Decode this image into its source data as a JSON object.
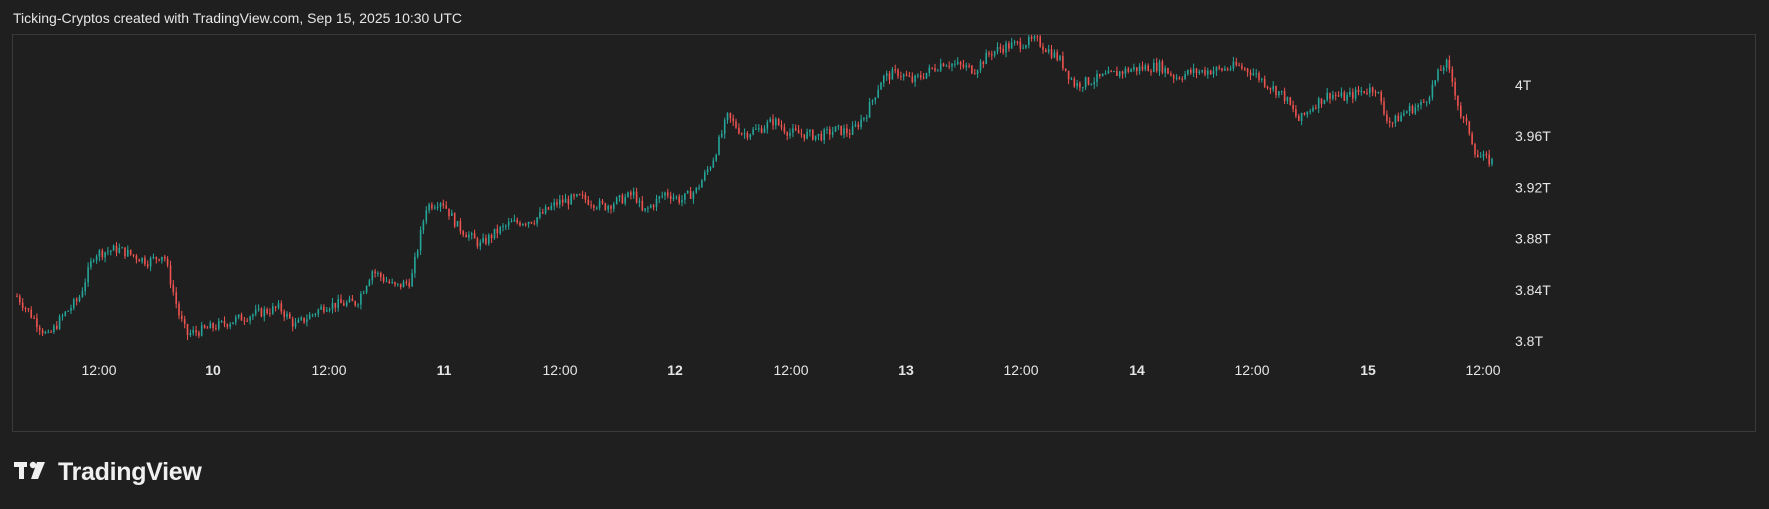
{
  "header": {
    "text": "Ticking-Cryptos created with TradingView.com, Sep 15, 2025 10:30 UTC"
  },
  "footer": {
    "brand": "TradingView",
    "logo_icon": "tradingview-logo-icon"
  },
  "colors": {
    "background": "#1f1f1f",
    "up": "#26a69a",
    "down": "#ef5350",
    "border": "#3a3a3a",
    "text": "#e6e6e6"
  },
  "chart_data": {
    "type": "candlestick",
    "title": "",
    "xlabel": "",
    "ylabel": "",
    "x_tick_labels": [
      "12:00",
      "10",
      "12:00",
      "11",
      "12:00",
      "12",
      "12:00",
      "13",
      "12:00",
      "14",
      "12:00",
      "15",
      "12:00"
    ],
    "x_tick_bold": [
      false,
      true,
      false,
      true,
      false,
      true,
      false,
      true,
      false,
      true,
      false,
      true,
      false
    ],
    "x_range": [
      "Sep 9 06:00",
      "Sep 15 13:00"
    ],
    "y_tick_labels": [
      "4T",
      "3.96T",
      "3.92T",
      "3.88T",
      "3.84T",
      "3.8T"
    ],
    "y_tick_values": [
      4.0,
      3.96,
      3.92,
      3.88,
      3.84,
      3.8
    ],
    "y_unit": "T",
    "ylim": [
      3.785,
      4.045
    ],
    "grid": false,
    "price_path": [
      [
        0.0,
        3.835
      ],
      [
        0.02,
        3.803
      ],
      [
        0.03,
        3.82
      ],
      [
        0.04,
        3.833
      ],
      [
        0.05,
        3.868
      ],
      [
        0.065,
        3.872
      ],
      [
        0.085,
        3.862
      ],
      [
        0.095,
        3.868
      ],
      [
        0.105,
        3.82
      ],
      [
        0.11,
        3.805
      ],
      [
        0.13,
        3.812
      ],
      [
        0.15,
        3.82
      ],
      [
        0.17,
        3.826
      ],
      [
        0.18,
        3.812
      ],
      [
        0.2,
        3.828
      ],
      [
        0.22,
        3.83
      ],
      [
        0.23,
        3.855
      ],
      [
        0.245,
        3.842
      ],
      [
        0.255,
        3.847
      ],
      [
        0.265,
        3.905
      ],
      [
        0.275,
        3.91
      ],
      [
        0.285,
        3.89
      ],
      [
        0.3,
        3.875
      ],
      [
        0.31,
        3.885
      ],
      [
        0.32,
        3.892
      ],
      [
        0.335,
        3.895
      ],
      [
        0.35,
        3.908
      ],
      [
        0.365,
        3.912
      ],
      [
        0.38,
        3.905
      ],
      [
        0.39,
        3.91
      ],
      [
        0.4,
        3.915
      ],
      [
        0.405,
        3.9
      ],
      [
        0.41,
        3.905
      ],
      [
        0.42,
        3.916
      ],
      [
        0.43,
        3.91
      ],
      [
        0.44,
        3.918
      ],
      [
        0.45,
        3.94
      ],
      [
        0.46,
        3.975
      ],
      [
        0.47,
        3.962
      ],
      [
        0.48,
        3.965
      ],
      [
        0.49,
        3.972
      ],
      [
        0.5,
        3.963
      ],
      [
        0.52,
        3.96
      ],
      [
        0.53,
        3.965
      ],
      [
        0.54,
        3.963
      ],
      [
        0.55,
        3.978
      ],
      [
        0.56,
        4.005
      ],
      [
        0.57,
        4.01
      ],
      [
        0.58,
        4.003
      ],
      [
        0.6,
        4.018
      ],
      [
        0.62,
        4.012
      ],
      [
        0.63,
        4.025
      ],
      [
        0.64,
        4.03
      ],
      [
        0.66,
        4.035
      ],
      [
        0.675,
        4.02
      ],
      [
        0.685,
        4.0
      ],
      [
        0.7,
        4.005
      ],
      [
        0.72,
        4.012
      ],
      [
        0.74,
        4.015
      ],
      [
        0.75,
        4.006
      ],
      [
        0.76,
        4.01
      ],
      [
        0.78,
        4.012
      ],
      [
        0.79,
        4.015
      ],
      [
        0.8,
        4.01
      ],
      [
        0.81,
        4.0
      ],
      [
        0.82,
        3.992
      ],
      [
        0.83,
        3.972
      ],
      [
        0.84,
        3.985
      ],
      [
        0.85,
        3.993
      ],
      [
        0.86,
        3.99
      ],
      [
        0.87,
        3.995
      ],
      [
        0.88,
        3.998
      ],
      [
        0.885,
        3.978
      ],
      [
        0.89,
        3.97
      ],
      [
        0.9,
        3.98
      ],
      [
        0.91,
        3.985
      ],
      [
        0.915,
        3.995
      ],
      [
        0.92,
        4.008
      ],
      [
        0.925,
        4.018
      ],
      [
        0.93,
        4.0
      ],
      [
        0.935,
        3.975
      ],
      [
        0.94,
        3.965
      ],
      [
        0.945,
        3.945
      ],
      [
        0.955,
        3.94
      ]
    ]
  }
}
